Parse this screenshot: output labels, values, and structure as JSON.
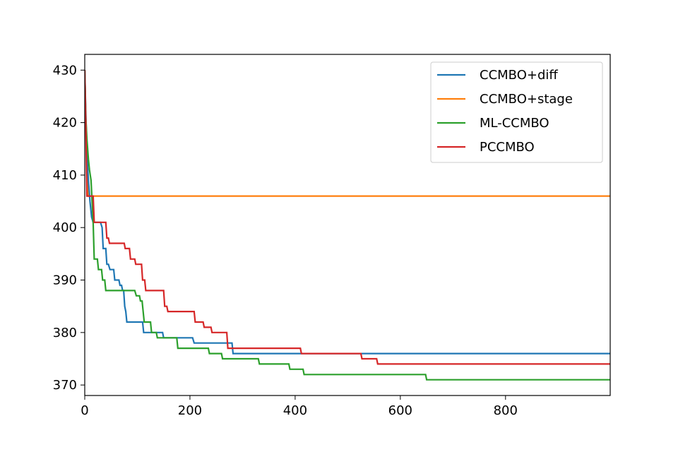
{
  "chart_data": {
    "type": "line",
    "title": "",
    "xlabel": "",
    "ylabel": "",
    "xlim": [
      0,
      999
    ],
    "ylim": [
      368,
      433
    ],
    "xticks": [
      0,
      200,
      400,
      600,
      800
    ],
    "yticks": [
      370,
      380,
      390,
      400,
      410,
      420,
      430
    ],
    "grid": false,
    "legend_position": "top-right",
    "series": [
      {
        "name": "CCMBO+diff",
        "color": "#1f77b4",
        "points": [
          [
            0,
            430
          ],
          [
            2,
            422
          ],
          [
            4,
            414
          ],
          [
            7,
            409
          ],
          [
            10,
            405
          ],
          [
            13,
            402
          ],
          [
            16,
            401
          ],
          [
            30,
            401
          ],
          [
            33,
            400
          ],
          [
            35,
            396
          ],
          [
            40,
            396
          ],
          [
            42,
            393
          ],
          [
            45,
            393
          ],
          [
            48,
            392
          ],
          [
            55,
            392
          ],
          [
            57,
            390
          ],
          [
            65,
            390
          ],
          [
            67,
            389
          ],
          [
            70,
            389
          ],
          [
            72,
            388
          ],
          [
            74,
            388
          ],
          [
            76,
            385
          ],
          [
            78,
            384
          ],
          [
            80,
            382
          ],
          [
            95,
            382
          ],
          [
            110,
            382
          ],
          [
            112,
            380
          ],
          [
            148,
            380
          ],
          [
            150,
            379
          ],
          [
            205,
            379
          ],
          [
            208,
            378
          ],
          [
            280,
            378
          ],
          [
            282,
            376
          ],
          [
            999,
            376
          ]
        ]
      },
      {
        "name": "CCMBO+stage",
        "color": "#ff7f0e",
        "points": [
          [
            0,
            430
          ],
          [
            2,
            420
          ],
          [
            4,
            411
          ],
          [
            7,
            406
          ],
          [
            999,
            406
          ]
        ],
        "hidden_under_other_lines": true
      },
      {
        "name": "ML-CCMBO",
        "color": "#2ca02c",
        "points": [
          [
            0,
            430
          ],
          [
            2,
            421
          ],
          [
            4,
            417
          ],
          [
            7,
            413
          ],
          [
            9,
            411
          ],
          [
            12,
            409
          ],
          [
            14,
            405
          ],
          [
            16,
            401
          ],
          [
            18,
            394
          ],
          [
            24,
            394
          ],
          [
            26,
            392
          ],
          [
            32,
            392
          ],
          [
            34,
            390
          ],
          [
            38,
            390
          ],
          [
            40,
            388
          ],
          [
            95,
            388
          ],
          [
            98,
            387
          ],
          [
            104,
            387
          ],
          [
            106,
            386
          ],
          [
            109,
            386
          ],
          [
            111,
            384
          ],
          [
            113,
            382
          ],
          [
            125,
            382
          ],
          [
            127,
            380
          ],
          [
            136,
            380
          ],
          [
            138,
            379
          ],
          [
            175,
            379
          ],
          [
            177,
            377
          ],
          [
            235,
            377
          ],
          [
            237,
            376
          ],
          [
            260,
            376
          ],
          [
            262,
            375
          ],
          [
            330,
            375
          ],
          [
            332,
            374
          ],
          [
            388,
            374
          ],
          [
            390,
            373
          ],
          [
            415,
            373
          ],
          [
            417,
            372
          ],
          [
            648,
            372
          ],
          [
            650,
            371
          ],
          [
            999,
            371
          ]
        ]
      },
      {
        "name": "PCCMBO",
        "color": "#d62728",
        "points": [
          [
            0,
            430
          ],
          [
            2,
            420
          ],
          [
            4,
            406
          ],
          [
            16,
            406
          ],
          [
            18,
            401
          ],
          [
            40,
            401
          ],
          [
            42,
            398
          ],
          [
            45,
            398
          ],
          [
            47,
            397
          ],
          [
            75,
            397
          ],
          [
            77,
            396
          ],
          [
            85,
            396
          ],
          [
            87,
            394
          ],
          [
            95,
            394
          ],
          [
            97,
            393
          ],
          [
            108,
            393
          ],
          [
            110,
            390
          ],
          [
            114,
            390
          ],
          [
            116,
            388
          ],
          [
            150,
            388
          ],
          [
            152,
            385
          ],
          [
            156,
            385
          ],
          [
            158,
            384
          ],
          [
            208,
            384
          ],
          [
            210,
            382
          ],
          [
            225,
            382
          ],
          [
            227,
            381
          ],
          [
            240,
            381
          ],
          [
            242,
            380
          ],
          [
            270,
            380
          ],
          [
            272,
            377
          ],
          [
            410,
            377
          ],
          [
            412,
            376
          ],
          [
            525,
            376
          ],
          [
            527,
            375
          ],
          [
            555,
            375
          ],
          [
            557,
            374
          ],
          [
            999,
            374
          ]
        ]
      }
    ]
  }
}
